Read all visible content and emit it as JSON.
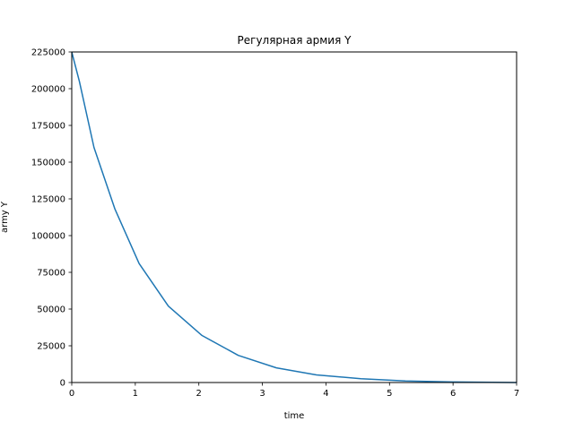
{
  "chart_data": {
    "type": "line",
    "title": "Регулярная армия Y",
    "xlabel": "time",
    "ylabel": "army Y",
    "xlim": [
      0,
      7
    ],
    "ylim": [
      0,
      225000
    ],
    "xticks": [
      "0",
      "1",
      "2",
      "3",
      "4",
      "5",
      "6",
      "7"
    ],
    "yticks": [
      "0",
      "25000",
      "50000",
      "75000",
      "100000",
      "125000",
      "150000",
      "175000",
      "200000",
      "225000"
    ],
    "grid": false,
    "line_color": "#1f77b4",
    "series": [
      {
        "x": [
          0,
          0.12,
          0.35,
          0.68,
          1.06,
          1.52,
          2.05,
          2.62,
          3.22,
          3.85,
          4.55,
          5.25,
          6.0,
          7.0
        ],
        "y": [
          225000,
          205000,
          160000,
          118000,
          81000,
          52000,
          32000,
          18500,
          10000,
          5200,
          2600,
          1100,
          400,
          0
        ]
      }
    ]
  }
}
